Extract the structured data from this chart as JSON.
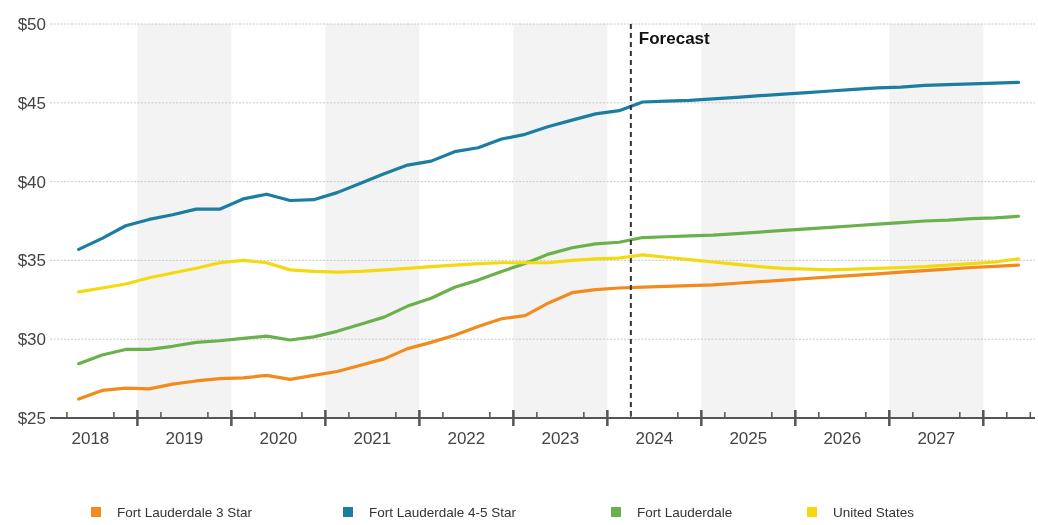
{
  "chart_data": {
    "type": "line",
    "x": [
      2018.375,
      2018.625,
      2018.875,
      2019.125,
      2019.375,
      2019.625,
      2019.875,
      2020.125,
      2020.375,
      2020.625,
      2020.875,
      2021.125,
      2021.375,
      2021.625,
      2021.875,
      2022.125,
      2022.375,
      2022.625,
      2022.875,
      2023.125,
      2023.375,
      2023.625,
      2023.875,
      2024.125,
      2024.375,
      2024.625,
      2024.875,
      2025.125,
      2025.375,
      2025.625,
      2025.875,
      2026.125,
      2026.375,
      2026.625,
      2026.875,
      2027.125,
      2027.375,
      2027.625,
      2027.875,
      2028.125,
      2028.375
    ],
    "series": [
      {
        "name": "Fort Lauderdale 3 Star",
        "color": "#f28a1c",
        "values": [
          26.2,
          26.75,
          26.9,
          26.85,
          27.15,
          27.35,
          27.5,
          27.55,
          27.7,
          27.45,
          27.7,
          27.95,
          28.35,
          28.75,
          29.4,
          29.8,
          30.25,
          30.8,
          31.3,
          31.5,
          32.3,
          32.95,
          33.15,
          33.25,
          33.3,
          33.35,
          33.4,
          33.45,
          33.55,
          33.65,
          33.75,
          33.85,
          33.95,
          34.05,
          34.15,
          34.25,
          34.35,
          34.45,
          34.55,
          34.62,
          34.7
        ]
      },
      {
        "name": "Fort Lauderdale 4-5 Star",
        "color": "#1b7ea1",
        "values": [
          35.7,
          36.4,
          37.2,
          37.6,
          37.9,
          38.25,
          38.25,
          38.9,
          39.2,
          38.8,
          38.85,
          39.3,
          39.9,
          40.5,
          41.05,
          41.3,
          41.9,
          42.15,
          42.7,
          43.0,
          43.5,
          43.9,
          44.3,
          44.5,
          45.05,
          45.1,
          45.15,
          45.25,
          45.35,
          45.45,
          45.55,
          45.65,
          45.75,
          45.85,
          45.95,
          46.0,
          46.1,
          46.15,
          46.2,
          46.25,
          46.3
        ]
      },
      {
        "name": "Fort Lauderdale",
        "color": "#6ab04c",
        "values": [
          28.45,
          29.0,
          29.35,
          29.35,
          29.55,
          29.8,
          29.9,
          30.05,
          30.2,
          29.95,
          30.15,
          30.5,
          30.95,
          31.4,
          32.1,
          32.6,
          33.3,
          33.75,
          34.3,
          34.8,
          35.4,
          35.8,
          36.05,
          36.15,
          36.45,
          36.5,
          36.55,
          36.6,
          36.7,
          36.8,
          36.9,
          37.0,
          37.1,
          37.2,
          37.3,
          37.4,
          37.5,
          37.55,
          37.65,
          37.7,
          37.8
        ]
      },
      {
        "name": "United States",
        "color": "#f5d90f",
        "values": [
          33.0,
          33.25,
          33.5,
          33.9,
          34.2,
          34.5,
          34.85,
          35.0,
          34.85,
          34.4,
          34.3,
          34.25,
          34.3,
          34.4,
          34.5,
          34.6,
          34.7,
          34.8,
          34.85,
          34.85,
          34.85,
          35.0,
          35.1,
          35.15,
          35.35,
          35.2,
          35.05,
          34.9,
          34.75,
          34.6,
          34.5,
          34.45,
          34.4,
          34.45,
          34.5,
          34.55,
          34.6,
          34.7,
          34.8,
          34.9,
          35.1
        ]
      }
    ],
    "xlim": [
      2018.07,
      2028.55
    ],
    "xticks": [
      {
        "value": 2018.25,
        "label": null
      },
      {
        "value": 2018.5,
        "label": "2018"
      },
      {
        "value": 2018.75,
        "label": null
      },
      {
        "value": 2019,
        "label": null
      },
      {
        "value": 2019.25,
        "label": null
      },
      {
        "value": 2019.5,
        "label": "2019"
      },
      {
        "value": 2019.75,
        "label": null
      },
      {
        "value": 2020,
        "label": null
      },
      {
        "value": 2020.25,
        "label": null
      },
      {
        "value": 2020.5,
        "label": "2020"
      },
      {
        "value": 2020.75,
        "label": null
      },
      {
        "value": 2021,
        "label": null
      },
      {
        "value": 2021.25,
        "label": null
      },
      {
        "value": 2021.5,
        "label": "2021"
      },
      {
        "value": 2021.75,
        "label": null
      },
      {
        "value": 2022,
        "label": null
      },
      {
        "value": 2022.25,
        "label": null
      },
      {
        "value": 2022.5,
        "label": "2022"
      },
      {
        "value": 2022.75,
        "label": null
      },
      {
        "value": 2023,
        "label": null
      },
      {
        "value": 2023.25,
        "label": null
      },
      {
        "value": 2023.5,
        "label": "2023"
      },
      {
        "value": 2023.75,
        "label": null
      },
      {
        "value": 2024,
        "label": null
      },
      {
        "value": 2024.25,
        "label": null
      },
      {
        "value": 2024.5,
        "label": "2024"
      },
      {
        "value": 2024.75,
        "label": null
      },
      {
        "value": 2025,
        "label": null
      },
      {
        "value": 2025.25,
        "label": null
      },
      {
        "value": 2025.5,
        "label": "2025"
      },
      {
        "value": 2025.75,
        "label": null
      },
      {
        "value": 2026,
        "label": null
      },
      {
        "value": 2026.25,
        "label": null
      },
      {
        "value": 2026.5,
        "label": "2026"
      },
      {
        "value": 2026.75,
        "label": null
      },
      {
        "value": 2027,
        "label": null
      },
      {
        "value": 2027.25,
        "label": null
      },
      {
        "value": 2027.5,
        "label": "2027"
      },
      {
        "value": 2027.75,
        "label": null
      },
      {
        "value": 2028,
        "label": null
      },
      {
        "value": 2028.25,
        "label": null
      },
      {
        "value": 2028.5,
        "label": null
      }
    ],
    "ylim": [
      25,
      50
    ],
    "yticks": [
      {
        "value": 25,
        "label": "$25"
      },
      {
        "value": 30,
        "label": "$30"
      },
      {
        "value": 35,
        "label": "$35"
      },
      {
        "value": 40,
        "label": "$40"
      },
      {
        "value": 45,
        "label": "$45"
      },
      {
        "value": 50,
        "label": "$50"
      }
    ],
    "grid": "y",
    "legend": "bottom",
    "marker": "none",
    "line_style": "solid",
    "bands": [
      {
        "axis": "x",
        "from": 2019,
        "to": 2020,
        "color": "#f3f3f3"
      },
      {
        "axis": "x",
        "from": 2021,
        "to": 2022,
        "color": "#f3f3f3"
      },
      {
        "axis": "x",
        "from": 2023,
        "to": 2024,
        "color": "#f3f3f3"
      },
      {
        "axis": "x",
        "from": 2025,
        "to": 2026,
        "color": "#f3f3f3"
      },
      {
        "axis": "x",
        "from": 2027,
        "to": 2028,
        "color": "#f3f3f3"
      }
    ],
    "ref_lines": [
      {
        "axis": "x",
        "value": 2024.25,
        "label": "Forecast",
        "color": "#333333",
        "line_style": "dashed"
      }
    ]
  }
}
